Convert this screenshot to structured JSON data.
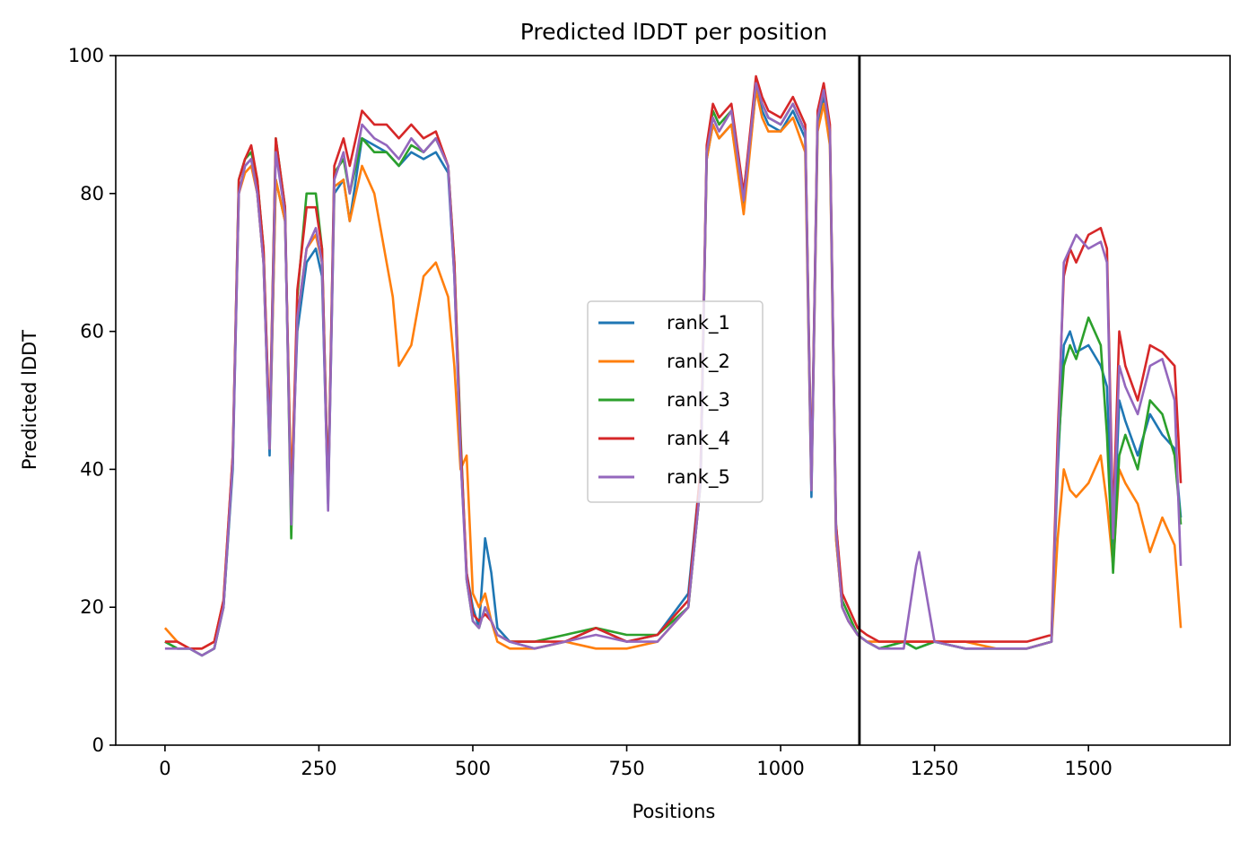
{
  "chart_data": {
    "type": "line",
    "title": "Predicted lDDT per position",
    "xlabel": "Positions",
    "ylabel": "Predicted lDDT",
    "xlim": [
      -80,
      1730
    ],
    "ylim": [
      0,
      100
    ],
    "xticks": [
      0,
      250,
      500,
      750,
      1000,
      1250,
      1500
    ],
    "yticks": [
      0,
      20,
      40,
      60,
      80,
      100
    ],
    "grid": false,
    "legend_position": "center",
    "vline": {
      "x": 1128,
      "color": "#000000"
    },
    "colors": {
      "rank_1": "#1f77b4",
      "rank_2": "#ff7f0e",
      "rank_3": "#2ca02c",
      "rank_4": "#d62728",
      "rank_5": "#9467bd"
    },
    "series": [
      {
        "name": "rank_1",
        "x": [
          0,
          20,
          40,
          60,
          80,
          95,
          110,
          120,
          130,
          140,
          150,
          160,
          170,
          180,
          195,
          205,
          215,
          230,
          245,
          255,
          265,
          275,
          290,
          300,
          320,
          340,
          360,
          380,
          400,
          420,
          440,
          460,
          470,
          480,
          490,
          500,
          510,
          520,
          530,
          540,
          560,
          600,
          650,
          700,
          750,
          800,
          850,
          870,
          880,
          890,
          900,
          920,
          940,
          960,
          970,
          980,
          1000,
          1020,
          1040,
          1050,
          1060,
          1070,
          1080,
          1090,
          1100,
          1110,
          1125,
          1140,
          1160,
          1200,
          1220,
          1250,
          1300,
          1350,
          1400,
          1440,
          1450,
          1460,
          1470,
          1480,
          1500,
          1520,
          1530,
          1540,
          1550,
          1560,
          1580,
          1600,
          1620,
          1640,
          1650
        ],
        "values": [
          15,
          14,
          14,
          13,
          14,
          20,
          40,
          80,
          84,
          85,
          80,
          70,
          42,
          82,
          76,
          36,
          60,
          70,
          72,
          68,
          35,
          80,
          82,
          76,
          88,
          87,
          86,
          84,
          86,
          85,
          86,
          83,
          68,
          42,
          25,
          20,
          17,
          30,
          25,
          17,
          15,
          14,
          15,
          17,
          15,
          16,
          22,
          40,
          85,
          90,
          88,
          90,
          78,
          95,
          92,
          90,
          89,
          92,
          88,
          36,
          90,
          94,
          88,
          30,
          20,
          18,
          16,
          15,
          14,
          15,
          14,
          15,
          14,
          14,
          14,
          15,
          40,
          58,
          60,
          57,
          58,
          55,
          52,
          28,
          50,
          47,
          42,
          48,
          45,
          43,
          33
        ]
      },
      {
        "name": "rank_2",
        "x": [
          0,
          20,
          40,
          60,
          80,
          95,
          110,
          120,
          130,
          140,
          150,
          160,
          170,
          180,
          195,
          205,
          215,
          230,
          245,
          255,
          265,
          275,
          290,
          300,
          320,
          340,
          360,
          370,
          380,
          400,
          420,
          440,
          460,
          470,
          480,
          490,
          500,
          510,
          520,
          530,
          540,
          560,
          600,
          650,
          700,
          750,
          800,
          850,
          870,
          880,
          890,
          900,
          920,
          940,
          960,
          970,
          980,
          1000,
          1020,
          1040,
          1050,
          1060,
          1070,
          1080,
          1090,
          1100,
          1110,
          1125,
          1140,
          1160,
          1200,
          1220,
          1250,
          1300,
          1350,
          1400,
          1440,
          1450,
          1460,
          1470,
          1480,
          1500,
          1520,
          1530,
          1540,
          1550,
          1560,
          1580,
          1600,
          1620,
          1640,
          1650
        ],
        "values": [
          17,
          15,
          14,
          14,
          15,
          21,
          42,
          80,
          83,
          84,
          80,
          70,
          43,
          82,
          76,
          37,
          62,
          72,
          74,
          70,
          36,
          81,
          82,
          76,
          84,
          80,
          70,
          65,
          55,
          58,
          68,
          70,
          65,
          55,
          40,
          42,
          22,
          20,
          22,
          18,
          15,
          14,
          14,
          15,
          14,
          14,
          15,
          20,
          38,
          85,
          90,
          88,
          90,
          77,
          95,
          91,
          89,
          89,
          91,
          86,
          37,
          89,
          93,
          87,
          30,
          20,
          18,
          16,
          15,
          15,
          15,
          15,
          15,
          15,
          14,
          14,
          15,
          30,
          40,
          37,
          36,
          38,
          42,
          35,
          26,
          40,
          38,
          35,
          28,
          33,
          29,
          17
        ]
      },
      {
        "name": "rank_3",
        "x": [
          0,
          20,
          40,
          60,
          80,
          95,
          110,
          120,
          130,
          140,
          150,
          160,
          170,
          180,
          195,
          205,
          215,
          230,
          245,
          255,
          265,
          275,
          290,
          300,
          320,
          340,
          360,
          380,
          400,
          420,
          440,
          460,
          470,
          480,
          490,
          500,
          510,
          520,
          530,
          540,
          560,
          600,
          650,
          700,
          750,
          800,
          850,
          870,
          880,
          890,
          900,
          920,
          940,
          960,
          970,
          980,
          1000,
          1020,
          1040,
          1050,
          1060,
          1070,
          1080,
          1090,
          1100,
          1110,
          1125,
          1140,
          1160,
          1200,
          1220,
          1250,
          1300,
          1350,
          1400,
          1440,
          1450,
          1460,
          1470,
          1480,
          1500,
          1520,
          1530,
          1540,
          1550,
          1560,
          1580,
          1600,
          1620,
          1640,
          1650
        ],
        "values": [
          15,
          14,
          14,
          13,
          14,
          20,
          41,
          82,
          85,
          86,
          82,
          72,
          44,
          88,
          78,
          30,
          65,
          80,
          80,
          72,
          36,
          83,
          85,
          80,
          88,
          86,
          86,
          84,
          87,
          86,
          88,
          84,
          70,
          45,
          24,
          18,
          17,
          20,
          18,
          16,
          15,
          15,
          16,
          17,
          16,
          16,
          20,
          38,
          86,
          92,
          90,
          92,
          80,
          96,
          93,
          91,
          90,
          93,
          89,
          38,
          91,
          95,
          89,
          32,
          21,
          19,
          16,
          15,
          14,
          15,
          14,
          15,
          14,
          14,
          14,
          15,
          42,
          55,
          58,
          56,
          62,
          58,
          45,
          25,
          42,
          45,
          40,
          50,
          48,
          42,
          32
        ]
      },
      {
        "name": "rank_4",
        "x": [
          0,
          20,
          40,
          60,
          80,
          95,
          110,
          120,
          130,
          140,
          150,
          160,
          170,
          180,
          195,
          205,
          215,
          230,
          245,
          255,
          265,
          275,
          290,
          300,
          320,
          340,
          360,
          380,
          400,
          420,
          440,
          460,
          470,
          480,
          490,
          500,
          510,
          520,
          530,
          540,
          560,
          600,
          650,
          700,
          750,
          800,
          850,
          870,
          880,
          890,
          900,
          920,
          940,
          960,
          970,
          980,
          1000,
          1020,
          1040,
          1050,
          1060,
          1070,
          1080,
          1090,
          1100,
          1110,
          1125,
          1140,
          1160,
          1200,
          1220,
          1250,
          1300,
          1350,
          1400,
          1440,
          1450,
          1460,
          1470,
          1480,
          1500,
          1520,
          1530,
          1540,
          1550,
          1560,
          1580,
          1600,
          1620,
          1640,
          1650
        ],
        "values": [
          15,
          15,
          14,
          14,
          15,
          21,
          42,
          82,
          85,
          87,
          82,
          72,
          45,
          88,
          78,
          33,
          66,
          78,
          78,
          72,
          36,
          84,
          88,
          84,
          92,
          90,
          90,
          88,
          90,
          88,
          89,
          84,
          70,
          44,
          25,
          19,
          18,
          19,
          18,
          16,
          15,
          15,
          15,
          17,
          15,
          16,
          21,
          40,
          87,
          93,
          91,
          93,
          80,
          97,
          94,
          92,
          91,
          94,
          90,
          38,
          92,
          96,
          90,
          32,
          22,
          20,
          17,
          16,
          15,
          15,
          15,
          15,
          15,
          15,
          15,
          16,
          45,
          68,
          72,
          70,
          74,
          75,
          72,
          32,
          60,
          55,
          50,
          58,
          57,
          55,
          38
        ]
      },
      {
        "name": "rank_5",
        "x": [
          0,
          20,
          40,
          60,
          80,
          95,
          110,
          120,
          130,
          140,
          150,
          160,
          170,
          180,
          195,
          205,
          215,
          230,
          245,
          255,
          265,
          275,
          290,
          300,
          320,
          340,
          360,
          380,
          400,
          420,
          440,
          460,
          470,
          480,
          490,
          500,
          510,
          520,
          530,
          540,
          560,
          600,
          650,
          700,
          750,
          800,
          850,
          870,
          880,
          890,
          900,
          920,
          940,
          960,
          970,
          980,
          1000,
          1020,
          1040,
          1050,
          1060,
          1070,
          1080,
          1090,
          1100,
          1110,
          1125,
          1140,
          1160,
          1200,
          1220,
          1225,
          1250,
          1300,
          1350,
          1400,
          1440,
          1450,
          1460,
          1470,
          1480,
          1500,
          1520,
          1530,
          1540,
          1550,
          1560,
          1580,
          1600,
          1620,
          1640,
          1650
        ],
        "values": [
          14,
          14,
          14,
          13,
          14,
          20,
          41,
          80,
          84,
          85,
          80,
          70,
          43,
          86,
          77,
          32,
          62,
          72,
          75,
          70,
          34,
          82,
          86,
          80,
          90,
          88,
          87,
          85,
          88,
          86,
          88,
          84,
          68,
          42,
          24,
          18,
          17,
          20,
          18,
          16,
          15,
          14,
          15,
          16,
          15,
          15,
          20,
          38,
          86,
          91,
          89,
          92,
          79,
          96,
          93,
          91,
          90,
          93,
          89,
          37,
          91,
          95,
          89,
          31,
          20,
          18,
          16,
          15,
          14,
          14,
          26,
          28,
          15,
          14,
          14,
          14,
          15,
          42,
          70,
          72,
          74,
          72,
          73,
          70,
          30,
          55,
          52,
          48,
          55,
          56,
          50,
          26
        ]
      }
    ]
  }
}
